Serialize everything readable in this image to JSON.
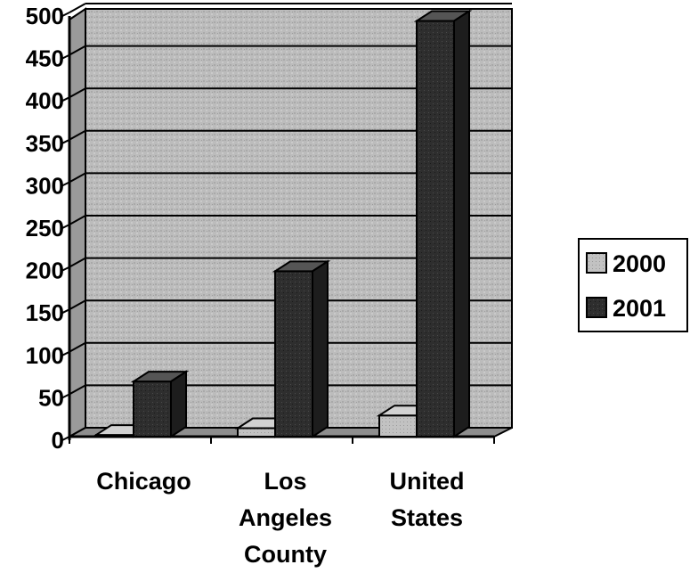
{
  "chart_data": {
    "type": "bar",
    "categories": [
      [
        "Chicago"
      ],
      [
        "Los",
        "Angeles",
        "County"
      ],
      [
        "United",
        "States"
      ]
    ],
    "series": [
      {
        "name": "2000",
        "values": [
          2,
          10,
          25
        ]
      },
      {
        "name": "2001",
        "values": [
          65,
          195,
          490
        ]
      }
    ],
    "y_ticks": [
      "0",
      "50",
      "100",
      "150",
      "200",
      "250",
      "300",
      "350",
      "400",
      "450",
      "500"
    ],
    "ylim": [
      0,
      500
    ],
    "grid": true,
    "legend_position": "right",
    "title": "",
    "xlabel": "",
    "ylabel": ""
  },
  "colors": {
    "wall": "#b9b9b9",
    "floor": "#8e8e8e",
    "series_2000": "#bdbdbd",
    "series_2001": "#2b2b2b"
  }
}
